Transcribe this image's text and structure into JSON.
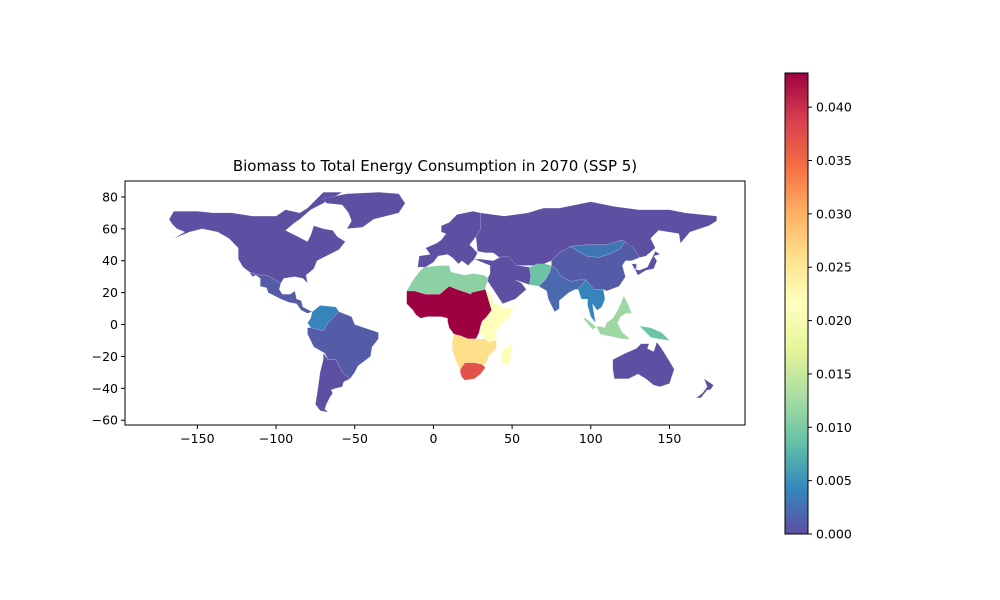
{
  "chart_data": {
    "type": "choropleth",
    "title": "Biomass to Total Energy Consumption in 2070 (SSP 5)",
    "xlabel": "",
    "ylabel": "",
    "xlim": [
      -196,
      198
    ],
    "ylim": [
      -63,
      90
    ],
    "x_ticks": [
      -150,
      -100,
      -50,
      0,
      50,
      100,
      150
    ],
    "x_tick_labels": [
      "−150",
      "−100",
      "−50",
      "0",
      "50",
      "100",
      "150"
    ],
    "y_ticks": [
      -60,
      -40,
      -20,
      0,
      20,
      40,
      60,
      80
    ],
    "y_tick_labels": [
      "−60",
      "−40",
      "−20",
      "0",
      "20",
      "40",
      "60",
      "80"
    ],
    "colorbar": {
      "colormap": "Spectral_r",
      "range": [
        0,
        0.0432
      ],
      "ticks": [
        0,
        0.005,
        0.01,
        0.015,
        0.02,
        0.025,
        0.03,
        0.035,
        0.04
      ],
      "tick_labels": [
        "0.000",
        "0.005",
        "0.010",
        "0.015",
        "0.020",
        "0.025",
        "0.030",
        "0.035",
        "0.040"
      ],
      "stops": [
        "#5e4fa2",
        "#3288bd",
        "#66c2a5",
        "#abdda4",
        "#e6f598",
        "#ffffbf",
        "#fee08b",
        "#fdae61",
        "#f46d43",
        "#d53e4f",
        "#9e0142"
      ]
    },
    "regions": [
      {
        "name": "North America",
        "value": 0.0
      },
      {
        "name": "Central America and Caribbean",
        "value": 0.001
      },
      {
        "name": "South America (Amazon)",
        "value": 0.001
      },
      {
        "name": "Colombia / Venezuela",
        "value": 0.004
      },
      {
        "name": "Southern Cone",
        "value": 0.0
      },
      {
        "name": "Greenland and Europe",
        "value": 0.0
      },
      {
        "name": "Russia and Central Asia",
        "value": 0.0
      },
      {
        "name": "Middle East",
        "value": 0.0
      },
      {
        "name": "North Africa",
        "value": 0.011
      },
      {
        "name": "West and Central Africa",
        "value": 0.0432
      },
      {
        "name": "East Africa",
        "value": 0.021
      },
      {
        "name": "Southern Africa",
        "value": 0.026
      },
      {
        "name": "South Africa",
        "value": 0.037
      },
      {
        "name": "Madagascar",
        "value": 0.021
      },
      {
        "name": "South Asia",
        "value": 0.002
      },
      {
        "name": "Pakistan / Afghanistan",
        "value": 0.009
      },
      {
        "name": "China",
        "value": 0.001
      },
      {
        "name": "Mongolia / North China",
        "value": 0.003
      },
      {
        "name": "Southeast Asia mainland",
        "value": 0.004
      },
      {
        "name": "Indonesia / Philippines",
        "value": 0.012
      },
      {
        "name": "New Guinea",
        "value": 0.009
      },
      {
        "name": "Japan / Korea",
        "value": 0.0
      },
      {
        "name": "Australia",
        "value": 0.0
      },
      {
        "name": "New Zealand",
        "value": 0.0
      }
    ]
  }
}
